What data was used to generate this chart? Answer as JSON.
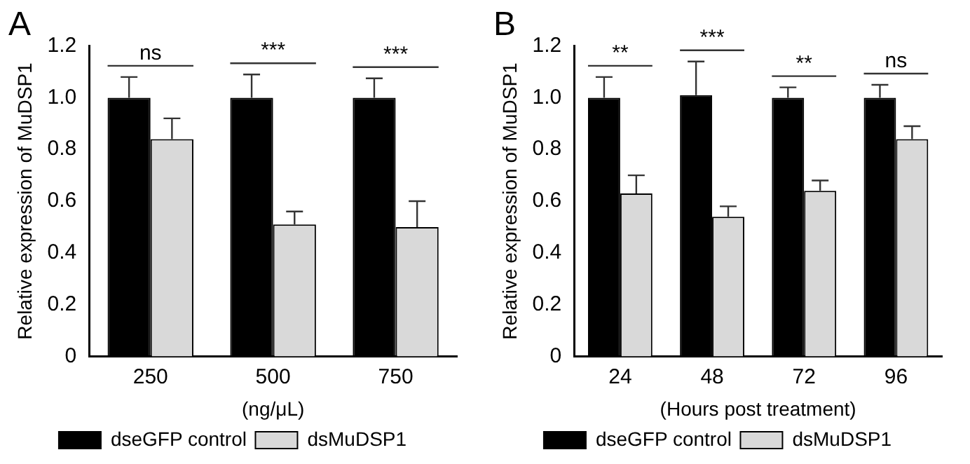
{
  "chart_data": [
    {
      "type": "bar",
      "title": "A",
      "ylabel": "Relative expression of MuDSP1",
      "xlabel": "(ng/μL)",
      "categories": [
        "250",
        "500",
        "750"
      ],
      "series": [
        {
          "name": "dseGFP control",
          "color": "#000000",
          "values": [
            1.0,
            1.0,
            1.0
          ],
          "errors": [
            [
              1.0,
              1.08
            ],
            [
              1.0,
              1.09
            ],
            [
              1.0,
              1.075
            ]
          ]
        },
        {
          "name": "dsMuDSP1",
          "color": "#d9d9d9",
          "values": [
            0.84,
            0.51,
            0.5
          ],
          "errors": [
            [
              0.84,
              0.92
            ],
            [
              0.51,
              0.56
            ],
            [
              0.5,
              0.6
            ]
          ]
        }
      ],
      "ylim": [
        0,
        1.2
      ],
      "yticks": [
        0,
        0.2,
        0.4,
        0.6,
        0.8,
        {
          "value": 1.0,
          "label": "1.0"
        },
        1.2
      ],
      "grid": false,
      "legend": "bottom",
      "annotations": [
        "ns",
        "***",
        "***"
      ]
    },
    {
      "type": "bar",
      "title": "B",
      "ylabel": "Relative expression of MuDSP1",
      "xlabel": "(Hours post treatment)",
      "categories": [
        "24",
        "48",
        "72",
        "96"
      ],
      "series": [
        {
          "name": "dseGFP control",
          "color": "#000000",
          "values": [
            1.0,
            1.01,
            1.0,
            1.0
          ],
          "errors": [
            [
              1.0,
              1.08
            ],
            [
              1.01,
              1.14
            ],
            [
              1.0,
              1.04
            ],
            [
              1.0,
              1.05
            ]
          ]
        },
        {
          "name": "dsMuDSP1",
          "color": "#d9d9d9",
          "values": [
            0.63,
            0.54,
            0.64,
            0.84
          ],
          "errors": [
            [
              0.63,
              0.7
            ],
            [
              0.54,
              0.58
            ],
            [
              0.64,
              0.68
            ],
            [
              0.84,
              0.89
            ]
          ]
        }
      ],
      "ylim": [
        0,
        1.2
      ],
      "yticks": [
        0,
        0.2,
        0.4,
        0.6,
        0.8,
        {
          "value": 1.0,
          "label": "1.0"
        },
        1.2
      ],
      "grid": false,
      "legend": "bottom",
      "annotations": [
        "**",
        "***",
        "**",
        "ns"
      ]
    }
  ]
}
